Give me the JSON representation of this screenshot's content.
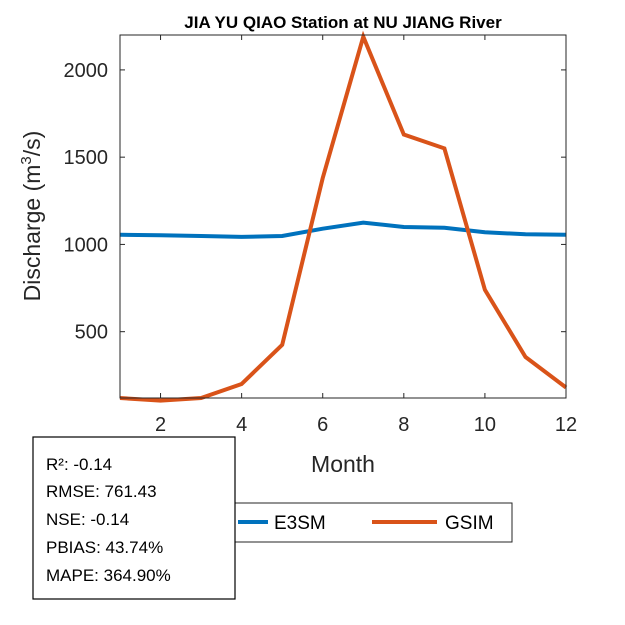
{
  "chart_data": {
    "type": "line",
    "title": "JIA YU QIAO  Station at  NU JIANG  River",
    "xlabel": "Month",
    "ylabel_main": "Discharge (m",
    "ylabel_sup": "3",
    "ylabel_tail": "/s)",
    "xlim": [
      1,
      12
    ],
    "ylim": [
      120,
      2200
    ],
    "xticks": [
      2,
      4,
      6,
      8,
      10,
      12
    ],
    "yticks": [
      500,
      1000,
      1500,
      2000
    ],
    "x": [
      1,
      2,
      3,
      4,
      5,
      6,
      7,
      8,
      9,
      10,
      11,
      12
    ],
    "series": [
      {
        "name": "E3SM",
        "color": "#0072BD",
        "values": [
          1055,
          1052,
          1048,
          1043,
          1048,
          1090,
          1125,
          1100,
          1095,
          1070,
          1058,
          1055
        ]
      },
      {
        "name": "GSIM",
        "color": "#D95319",
        "values": [
          120,
          105,
          120,
          200,
          425,
          1380,
          2190,
          1630,
          1550,
          740,
          355,
          180
        ]
      }
    ],
    "legend_placement": "bottom"
  },
  "stats": {
    "r2": "R²: -0.14",
    "rmse": "RMSE: 761.43",
    "nse": "NSE: -0.14",
    "pbias": "PBIAS: 43.74%",
    "mape": "MAPE: 364.90%"
  }
}
